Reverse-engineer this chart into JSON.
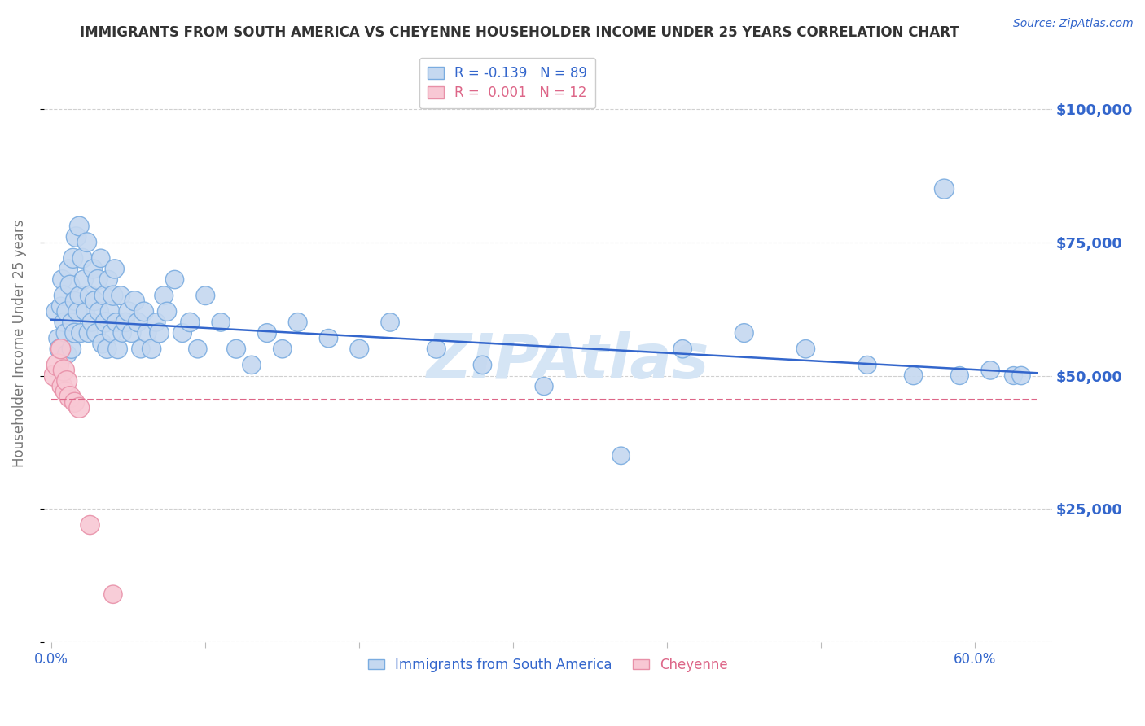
{
  "title": "IMMIGRANTS FROM SOUTH AMERICA VS CHEYENNE HOUSEHOLDER INCOME UNDER 25 YEARS CORRELATION CHART",
  "source": "Source: ZipAtlas.com",
  "ylabel": "Householder Income Under 25 years",
  "xlabel_ticks": [
    "0.0%",
    "",
    "",
    "",
    "",
    "",
    "60.0%"
  ],
  "xlabel_vals": [
    0.0,
    0.1,
    0.2,
    0.3,
    0.4,
    0.5,
    0.6
  ],
  "ylabel_ticks": [
    0,
    25000,
    50000,
    75000,
    100000
  ],
  "ylabel_labels": [
    "",
    "$25,000",
    "$50,000",
    "$75,000",
    "$100,000"
  ],
  "ylim": [
    0,
    112000
  ],
  "xlim": [
    -0.005,
    0.65
  ],
  "blue_R": "-0.139",
  "blue_N": "89",
  "pink_R": "0.001",
  "pink_N": "12",
  "watermark": "ZIPAtlas",
  "blue_scatter_x": [
    0.003,
    0.004,
    0.005,
    0.006,
    0.007,
    0.008,
    0.008,
    0.009,
    0.01,
    0.01,
    0.011,
    0.012,
    0.013,
    0.013,
    0.014,
    0.015,
    0.015,
    0.016,
    0.017,
    0.018,
    0.018,
    0.019,
    0.02,
    0.021,
    0.022,
    0.023,
    0.024,
    0.025,
    0.026,
    0.027,
    0.028,
    0.029,
    0.03,
    0.031,
    0.032,
    0.033,
    0.034,
    0.035,
    0.036,
    0.037,
    0.038,
    0.039,
    0.04,
    0.041,
    0.042,
    0.043,
    0.045,
    0.046,
    0.048,
    0.05,
    0.052,
    0.054,
    0.056,
    0.058,
    0.06,
    0.062,
    0.065,
    0.068,
    0.07,
    0.073,
    0.075,
    0.08,
    0.085,
    0.09,
    0.095,
    0.1,
    0.11,
    0.12,
    0.13,
    0.14,
    0.15,
    0.16,
    0.18,
    0.2,
    0.22,
    0.25,
    0.28,
    0.32,
    0.37,
    0.41,
    0.45,
    0.49,
    0.53,
    0.56,
    0.59,
    0.61,
    0.625,
    0.63,
    0.58
  ],
  "blue_scatter_y": [
    62000,
    57000,
    55000,
    63000,
    68000,
    60000,
    65000,
    58000,
    54000,
    62000,
    70000,
    67000,
    60000,
    55000,
    72000,
    64000,
    58000,
    76000,
    62000,
    65000,
    78000,
    58000,
    72000,
    68000,
    62000,
    75000,
    58000,
    65000,
    60000,
    70000,
    64000,
    58000,
    68000,
    62000,
    72000,
    56000,
    65000,
    60000,
    55000,
    68000,
    62000,
    58000,
    65000,
    70000,
    60000,
    55000,
    65000,
    58000,
    60000,
    62000,
    58000,
    64000,
    60000,
    55000,
    62000,
    58000,
    55000,
    60000,
    58000,
    65000,
    62000,
    68000,
    58000,
    60000,
    55000,
    65000,
    60000,
    55000,
    52000,
    58000,
    55000,
    60000,
    57000,
    55000,
    60000,
    55000,
    52000,
    48000,
    35000,
    55000,
    58000,
    55000,
    52000,
    50000,
    50000,
    51000,
    50000,
    50000,
    85000
  ],
  "blue_scatter_size": [
    300,
    250,
    280,
    260,
    290,
    270,
    300,
    260,
    280,
    310,
    270,
    290,
    260,
    280,
    300,
    270,
    290,
    310,
    280,
    260,
    290,
    270,
    300,
    280,
    260,
    290,
    270,
    300,
    260,
    280,
    290,
    270,
    300,
    280,
    260,
    290,
    270,
    300,
    280,
    260,
    290,
    270,
    300,
    280,
    260,
    290,
    270,
    260,
    280,
    290,
    270,
    300,
    280,
    260,
    290,
    270,
    280,
    260,
    290,
    270,
    280,
    260,
    270,
    280,
    260,
    270,
    260,
    270,
    260,
    270,
    260,
    270,
    260,
    270,
    260,
    270,
    260,
    250,
    240,
    260,
    270,
    260,
    250,
    260,
    250,
    260,
    250,
    260,
    300
  ],
  "pink_scatter_x": [
    0.002,
    0.004,
    0.006,
    0.007,
    0.008,
    0.009,
    0.01,
    0.012,
    0.015,
    0.018,
    0.025,
    0.04
  ],
  "pink_scatter_y": [
    50000,
    52000,
    55000,
    48000,
    51000,
    47000,
    49000,
    46000,
    45000,
    44000,
    22000,
    9000
  ],
  "pink_scatter_size": [
    350,
    380,
    300,
    320,
    350,
    300,
    320,
    350,
    300,
    320,
    280,
    260
  ],
  "blue_line_x": [
    0.0,
    0.64
  ],
  "blue_line_y": [
    60500,
    50500
  ],
  "pink_line_x": [
    0.0,
    0.64
  ],
  "pink_line_y": [
    45500,
    45500
  ],
  "grid_color": "#d0d0d0",
  "blue_color": "#c5d8f0",
  "blue_edge_color": "#7aace0",
  "blue_line_color": "#3366cc",
  "pink_color": "#f8c8d4",
  "pink_edge_color": "#e890a8",
  "pink_line_color": "#dd6688",
  "title_color": "#333333",
  "axis_label_color": "#3366cc",
  "watermark_color": "#d5e5f5",
  "legend_blue_fill": "#c5d8f0",
  "legend_pink_fill": "#f8c8d4",
  "background_color": "#ffffff"
}
